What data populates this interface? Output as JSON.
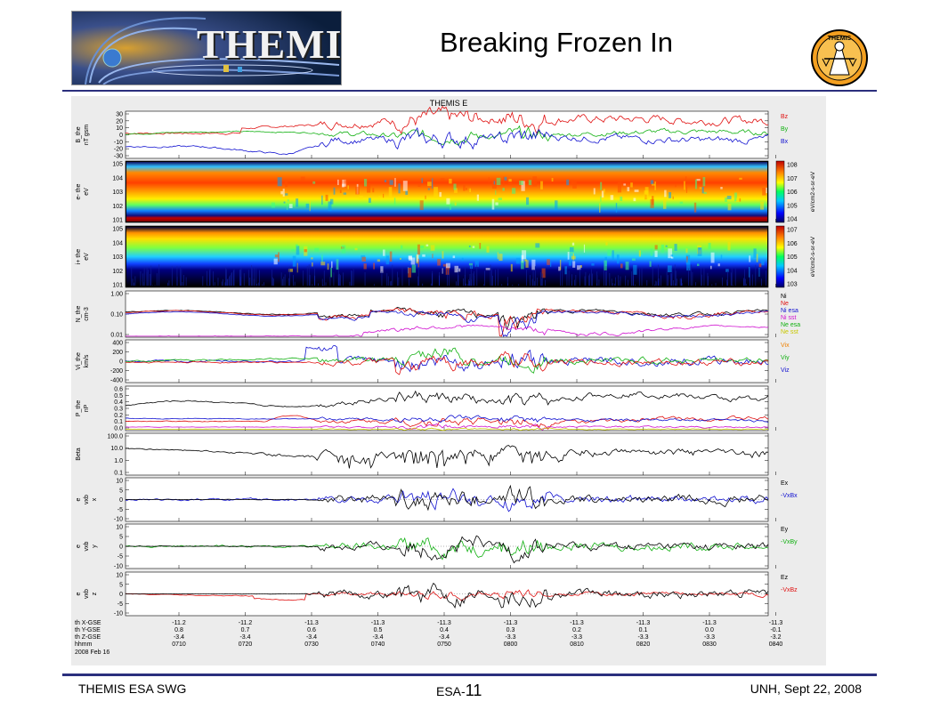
{
  "header": {
    "title": "Breaking Frozen In",
    "logo_left_text": "THEMIS",
    "logo_right_text": "THEMIS"
  },
  "footer": {
    "left": "THEMIS ESA SWG",
    "center_prefix": "ESA-",
    "center_number": "11",
    "right": "UNH,   Sept 22, 2008"
  },
  "chart_data": {
    "type": "line",
    "title": "THEMIS E",
    "date_label": "2008 Feb 16",
    "colors": {
      "red": "#e01010",
      "green": "#10b010",
      "blue": "#1010d0",
      "black": "#000000",
      "magenta": "#d010d0",
      "cyan": "#10c0c0",
      "yellow": "#c8c800",
      "orange": "#f08000"
    },
    "time_ticks": [
      "0710",
      "0720",
      "0730",
      "0740",
      "0750",
      "0800",
      "0810",
      "0820",
      "0830",
      "0840"
    ],
    "time_range": [
      "0705",
      "0840"
    ],
    "ephemeris": {
      "labels": [
        "th_X-GSE",
        "th_Y-GSE",
        "th_Z-GSE",
        "hhmm"
      ],
      "x": [
        "-11.2",
        "-11.2",
        "-11.3",
        "-11.3",
        "-11.3",
        "-11.3",
        "-11.3",
        "-11.3",
        "-11.3",
        "-11.3"
      ],
      "y": [
        "0.8",
        "0.7",
        "0.6",
        "0.5",
        "0.4",
        "0.3",
        "0.2",
        "0.1",
        "0.0",
        "-0.1"
      ],
      "z": [
        "-3.4",
        "-3.4",
        "-3.4",
        "-3.4",
        "-3.4",
        "-3.3",
        "-3.3",
        "-3.3",
        "-3.3",
        "-3.2"
      ]
    },
    "panels": [
      {
        "id": "B",
        "ylabel": [
          "B_the",
          "nT gsm"
        ],
        "ticks": [
          "30",
          "20",
          "10",
          "0",
          "-10",
          "-20",
          "-30"
        ],
        "ylim": [
          -30,
          30
        ],
        "legend": [
          "Bz",
          "By",
          "Bx"
        ],
        "legend_colors": [
          "red",
          "green",
          "blue"
        ]
      },
      {
        "id": "e-",
        "ylabel": [
          "e- the",
          "eV"
        ],
        "ticks": [
          "10^5",
          "10^4",
          "10^3",
          "10^2",
          "10^1"
        ],
        "colorbar_ticks": [
          "10^8",
          "10^7",
          "10^6",
          "10^5",
          "10^4"
        ],
        "colorbar_label": "eV/cm^2-s-sr-eV",
        "type": "spectrogram"
      },
      {
        "id": "i+",
        "ylabel": [
          "i+ the",
          "eV"
        ],
        "ticks": [
          "10^5",
          "10^4",
          "10^3",
          "10^2",
          "10^1"
        ],
        "colorbar_ticks": [
          "10^7",
          "10^6",
          "10^5",
          "10^4",
          "10^3"
        ],
        "colorbar_label": "eV/cm^2-s-sr-eV",
        "type": "spectrogram"
      },
      {
        "id": "N",
        "ylabel": [
          "N_the",
          "cm^-3"
        ],
        "ticks": [
          "1.00",
          "0.10",
          "0.01"
        ],
        "legend": [
          "Ni",
          "Ne",
          "Ni esa",
          "Ni sst",
          "Ne esa",
          "Ne sst"
        ],
        "legend_colors": [
          "black",
          "red",
          "blue",
          "magenta",
          "green",
          "yellow"
        ]
      },
      {
        "id": "Vi",
        "ylabel": [
          "Vi_the",
          "km/s"
        ],
        "ticks": [
          "400",
          "200",
          "0",
          "-200",
          "-400"
        ],
        "ylim": [
          -400,
          400
        ],
        "legend": [
          "Vi_x",
          "Vi_y",
          "Vi_z"
        ],
        "legend_colors": [
          "orange",
          "green",
          "blue"
        ]
      },
      {
        "id": "P",
        "ylabel": [
          "P_the",
          "nP"
        ],
        "ticks": [
          "0.6",
          "0.5",
          "0.4",
          "0.3",
          "0.2",
          "0.1",
          "0.0"
        ],
        "ylim": [
          0,
          0.6
        ]
      },
      {
        "id": "Beta",
        "ylabel": [
          "Beta"
        ],
        "ticks": [
          "100.0",
          "10.0",
          "1.0",
          "0.1"
        ]
      },
      {
        "id": "Ex",
        "ylabel": [
          "e",
          "vxb",
          "x"
        ],
        "ticks": [
          "10",
          "5",
          "0",
          "-5",
          "-10"
        ],
        "ylim": [
          -10,
          10
        ],
        "legend": [
          "E_x",
          "-VxB_x"
        ],
        "legend_colors": [
          "black",
          "blue"
        ]
      },
      {
        "id": "Ey",
        "ylabel": [
          "e",
          "vxb",
          "y"
        ],
        "ticks": [
          "10",
          "5",
          "0",
          "-5",
          "-10"
        ],
        "ylim": [
          -10,
          10
        ],
        "legend": [
          "E_y",
          "-VxB_y"
        ],
        "legend_colors": [
          "black",
          "green"
        ]
      },
      {
        "id": "Ez",
        "ylabel": [
          "e",
          "vxb",
          "z"
        ],
        "ticks": [
          "10",
          "5",
          "0",
          "-5",
          "-10"
        ],
        "ylim": [
          -10,
          10
        ],
        "legend": [
          "E_z",
          "-VxB_z"
        ],
        "legend_colors": [
          "black",
          "red"
        ]
      }
    ]
  }
}
